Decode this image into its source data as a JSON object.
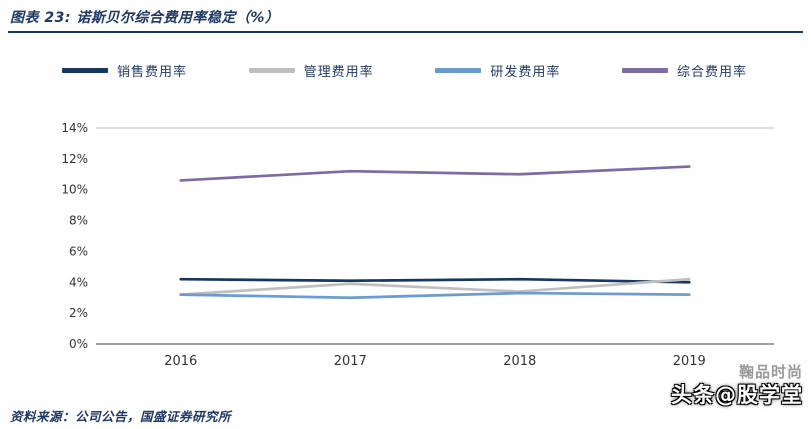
{
  "header": {
    "title": "图表 23:  诺斯贝尔综合费用率稳定（%）"
  },
  "footer": {
    "source": "资料来源：公司公告，国盛证券研究所"
  },
  "watermark": {
    "line1": "鞠品时尚",
    "line2": "头条@股学堂"
  },
  "colors": {
    "title_navy": "#1F3864",
    "divider_navy": "#17375E",
    "plot_top_border": "#BFBFBF",
    "axis_line": "#7F7F7F",
    "tick_text": "#333333"
  },
  "chart_data": {
    "type": "line",
    "title": "诺斯贝尔综合费用率稳定（%）",
    "categories": [
      "2016",
      "2017",
      "2018",
      "2019"
    ],
    "series": [
      {
        "name": "销售费用率",
        "color": "#17375E",
        "values": [
          4.2,
          4.1,
          4.2,
          4.0
        ]
      },
      {
        "name": "管理费用率",
        "color": "#BFBFBF",
        "values": [
          3.2,
          3.9,
          3.4,
          4.2
        ]
      },
      {
        "name": "研发费用率",
        "color": "#6B9BD2",
        "values": [
          3.2,
          3.0,
          3.3,
          3.2
        ]
      },
      {
        "name": "综合费用率",
        "color": "#7C6BA4",
        "values": [
          10.6,
          11.2,
          11.0,
          11.5
        ]
      }
    ],
    "xlabel": "",
    "ylabel": "",
    "ylim": [
      0,
      14
    ],
    "ytick_step": 2,
    "ytick_format": "percent",
    "grid": false,
    "legend_position": "top"
  }
}
